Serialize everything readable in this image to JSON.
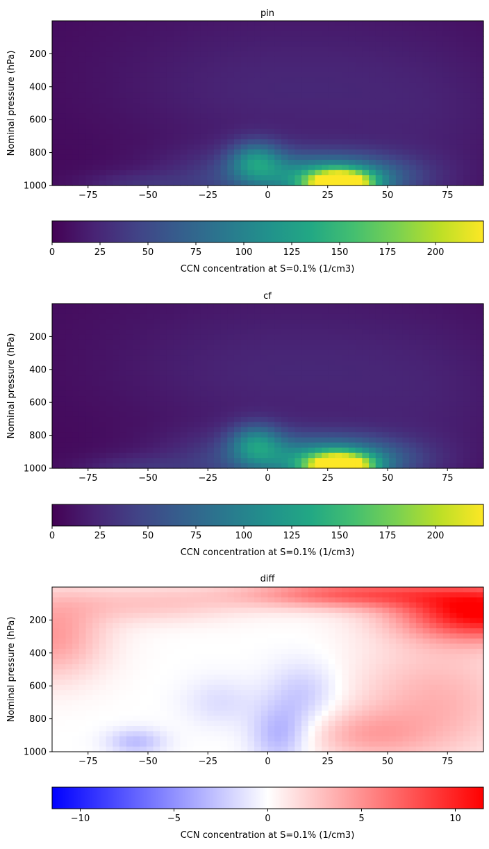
{
  "figure": {
    "panels": [
      {
        "id": "pin",
        "title": "pin",
        "ylabel": "Nominal pressure (hPa)",
        "colorbar_label": "CCN concentration at S=0.1% (1/cm3)",
        "colormap": "viridis"
      },
      {
        "id": "cf",
        "title": "cf",
        "ylabel": "Nominal pressure (hPa)",
        "colorbar_label": "CCN concentration at S=0.1% (1/cm3)",
        "colormap": "viridis"
      },
      {
        "id": "diff",
        "title": "diff",
        "ylabel": "Nominal pressure (hPa)",
        "colorbar_label": "CCN concentration at S=0.1% (1/cm3)",
        "colormap": "bwr"
      }
    ]
  },
  "chart_data": [
    {
      "type": "heatmap",
      "title": "pin",
      "xlabel": "",
      "ylabel": "Nominal pressure (hPa)",
      "xlim": [
        -90,
        90
      ],
      "ylim": [
        1000,
        0
      ],
      "xticks": [
        -75,
        -50,
        -25,
        0,
        25,
        50,
        75
      ],
      "yticks": [
        200,
        400,
        600,
        800,
        1000
      ],
      "colorbar": {
        "label": "CCN concentration at S=0.1% (1/cm3)",
        "range": [
          0,
          225
        ],
        "ticks": [
          0,
          25,
          50,
          75,
          100,
          125,
          150,
          175,
          200
        ],
        "colormap": "viridis"
      },
      "features": [
        {
          "lat": 30,
          "pressure": 990,
          "value": 225,
          "description": "surface maximum near 30N"
        },
        {
          "lat": -5,
          "pressure": 850,
          "value": 110,
          "description": "secondary plume near equator"
        }
      ]
    },
    {
      "type": "heatmap",
      "title": "cf",
      "xlabel": "",
      "ylabel": "Nominal pressure (hPa)",
      "xlim": [
        -90,
        90
      ],
      "ylim": [
        1000,
        0
      ],
      "xticks": [
        -75,
        -50,
        -25,
        0,
        25,
        50,
        75
      ],
      "yticks": [
        200,
        400,
        600,
        800,
        1000
      ],
      "colorbar": {
        "label": "CCN concentration at S=0.1% (1/cm3)",
        "range": [
          0,
          225
        ],
        "ticks": [
          0,
          25,
          50,
          75,
          100,
          125,
          150,
          175,
          200
        ],
        "colormap": "viridis"
      },
      "features": [
        {
          "lat": 30,
          "pressure": 990,
          "value": 222,
          "description": "surface maximum near 30N"
        },
        {
          "lat": -5,
          "pressure": 850,
          "value": 108,
          "description": "secondary plume near equator"
        }
      ]
    },
    {
      "type": "heatmap",
      "title": "diff",
      "xlabel": "",
      "ylabel": "Nominal pressure (hPa)",
      "xlim": [
        -90,
        90
      ],
      "ylim": [
        1000,
        0
      ],
      "xticks": [
        -75,
        -50,
        -25,
        0,
        25,
        50,
        75
      ],
      "yticks": [
        200,
        400,
        600,
        800,
        1000
      ],
      "colorbar": {
        "label": "CCN concentration at S=0.1% (1/cm3)",
        "range": [
          -11.5,
          11.5
        ],
        "ticks": [
          -10,
          -5,
          0,
          5,
          10
        ],
        "colormap": "bwr"
      },
      "features": [
        {
          "lat": 85,
          "pressure": 150,
          "value": 11.5,
          "description": "strong positive upper troposphere, NH high latitudes"
        },
        {
          "lat": 20,
          "pressure": 40,
          "value": 7,
          "description": "positive band near top"
        },
        {
          "lat": -85,
          "pressure": 300,
          "value": 4,
          "description": "moderate positive SH high latitudes"
        },
        {
          "lat": 5,
          "pressure": 900,
          "value": -3.5,
          "description": "negative near equator lower troposphere"
        },
        {
          "lat": -55,
          "pressure": 930,
          "value": -3,
          "description": "negative near surface SH midlatitudes"
        }
      ]
    }
  ]
}
